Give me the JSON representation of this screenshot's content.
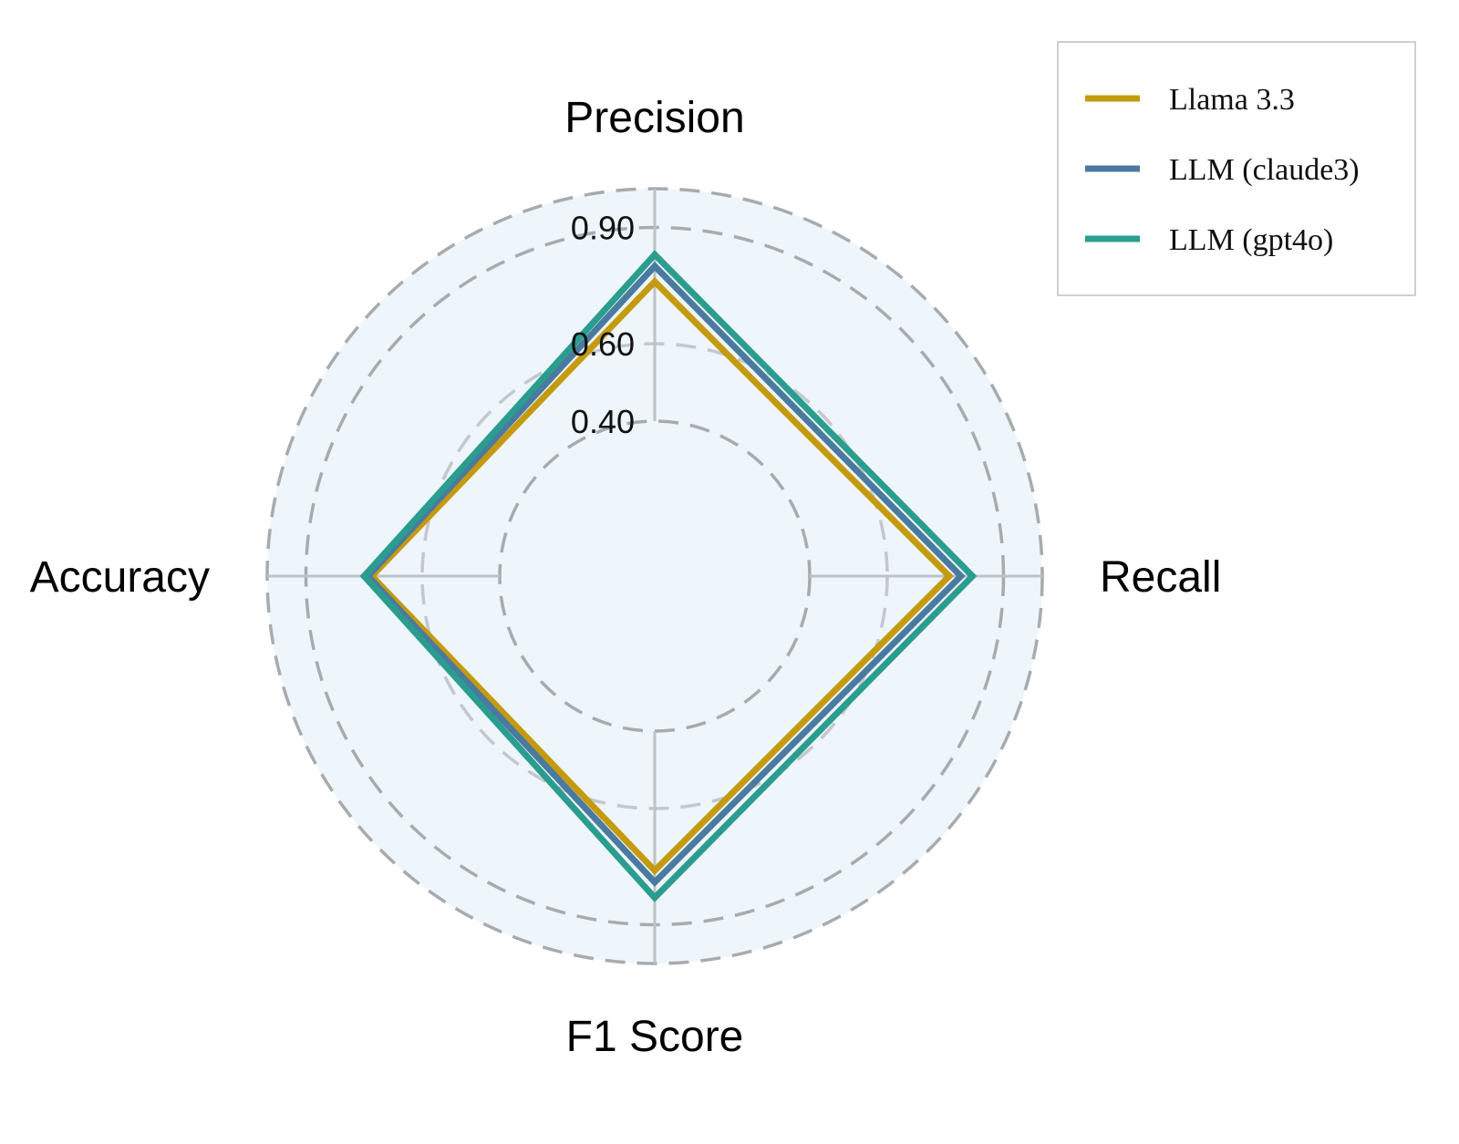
{
  "chart_data": {
    "type": "radar",
    "axes": [
      "Precision",
      "Recall",
      "F1 Score",
      "Accuracy"
    ],
    "radial_range": [
      0,
      1
    ],
    "radial_ticks": [
      0.4,
      0.6,
      0.9
    ],
    "radial_tick_labels": [
      "0.40",
      "0.60",
      "0.90"
    ],
    "grid": true,
    "legend_position": "top-right",
    "background_color": "#eef5fb",
    "series": [
      {
        "name": "Llama 3.3",
        "color": "#c49a0e",
        "values": [
          0.76,
          0.76,
          0.76,
          0.73
        ]
      },
      {
        "name": "LLM (claude3)",
        "color": "#4a7aa0",
        "values": [
          0.8,
          0.79,
          0.79,
          0.74
        ]
      },
      {
        "name": "LLM (gpt4o)",
        "color": "#2a9d8f",
        "values": [
          0.83,
          0.82,
          0.83,
          0.75
        ]
      }
    ]
  }
}
